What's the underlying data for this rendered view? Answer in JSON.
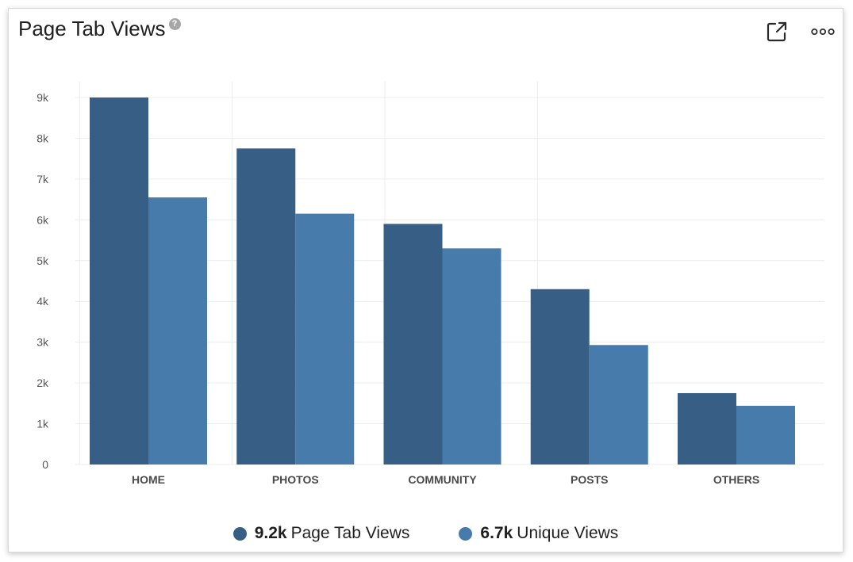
{
  "header": {
    "title": "Page Tab Views",
    "help_icon": "?"
  },
  "icons": {
    "export": "external-link-icon",
    "more": "more-options-icon"
  },
  "colors": {
    "series1": "#375f85",
    "series2": "#477bab",
    "grid": "#ececec",
    "axis_text": "#555555",
    "category_text": "#4a4a4a"
  },
  "chart_data": {
    "type": "bar",
    "categories": [
      "HOME",
      "PHOTOS",
      "COMMUNITY",
      "POSTS",
      "OTHERS"
    ],
    "series": [
      {
        "name": "Page Tab Views",
        "values": [
          9000,
          7750,
          5900,
          4300,
          1750
        ]
      },
      {
        "name": "Unique Views",
        "values": [
          6550,
          6150,
          5300,
          2930,
          1440
        ]
      }
    ],
    "y_ticks": [
      "0",
      "1k",
      "2k",
      "3k",
      "4k",
      "5k",
      "6k",
      "7k",
      "8k",
      "9k"
    ],
    "ylim": [
      0,
      9000
    ],
    "grid": true,
    "legend_position": "bottom-center"
  },
  "legend": [
    {
      "value": "9.2k",
      "label": "Page Tab Views"
    },
    {
      "value": "6.7k",
      "label": "Unique Views"
    }
  ]
}
